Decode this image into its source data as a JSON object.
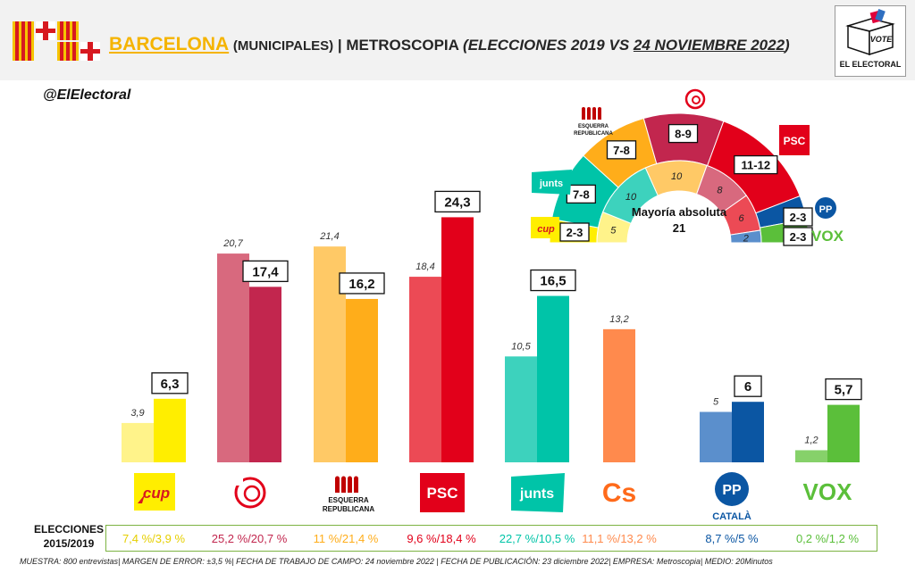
{
  "header": {
    "city": "BARCELONA",
    "election_type": "(MUNICIPALES)",
    "separator": "|",
    "pollster": "METROSCOPIA",
    "comparison_open": "(",
    "comparison": "ELECCIONES 2019 VS",
    "date": "24 NOVIEMBRE 2022",
    "comparison_close": ")"
  },
  "logo": {
    "vote": "VOTE",
    "text": "EL ELECTORAL"
  },
  "handle": "@ElElectoral",
  "colors": {
    "CUP": [
      "#fff38a",
      "#ffee00"
    ],
    "BComu": [
      "#d8697e",
      "#c2264e"
    ],
    "ERC": [
      "#ffc966",
      "#ffad1a"
    ],
    "PSC": [
      "#ec4a55",
      "#e2001a"
    ],
    "Junts": [
      "#3dd2bd",
      "#00c4a8"
    ],
    "Cs": [
      "#ff8a4d",
      "#ff8a4d"
    ],
    "PP": [
      "#5b8fcc",
      "#0b56a3"
    ],
    "Vox": [
      "#86d16a",
      "#5bbf3a"
    ]
  },
  "chart_data": {
    "type": "bar",
    "categories": [
      "CUP",
      "BComu",
      "ERC",
      "PSC",
      "Junts",
      "Cs",
      "PP",
      "Vox"
    ],
    "category_labels": [
      "cup",
      "",
      "ESQUERRA REPUBLICANA",
      "PSC",
      "junts",
      "Cs",
      "PP",
      "VOX"
    ],
    "category_sublabels": [
      "",
      "",
      "",
      "",
      "",
      "",
      "CATALÀ",
      ""
    ],
    "series": [
      {
        "name": "",
        "values": [
          3.9,
          20.7,
          21.4,
          18.4,
          10.5,
          13.2,
          5,
          1.2
        ],
        "labels": [
          "3,9",
          "20,7",
          "21,4",
          "18,4",
          "10,5",
          "13,2",
          "5",
          "1,2"
        ]
      },
      {
        "name": "",
        "values": [
          6.3,
          17.4,
          16.2,
          24.3,
          16.5,
          null,
          6,
          5.7
        ],
        "labels": [
          "6,3",
          "17,4",
          "16,2",
          "24,3",
          "16,5",
          "",
          "6",
          "5,7"
        ]
      }
    ],
    "ylim": [
      0,
      26
    ]
  },
  "hemicycle": {
    "type": "pie",
    "label": "Mayoría absoluta",
    "majority": "21",
    "order": [
      "CUP",
      "Junts",
      "ERC",
      "BComu",
      "PSC",
      "PP",
      "Vox"
    ],
    "outer_labels": [
      "2-3",
      "7-8",
      "7-8",
      "8-9",
      "11-12",
      "2-3",
      "2-3"
    ],
    "outer_values": [
      2.5,
      7.5,
      7.5,
      8.5,
      11.5,
      2.5,
      2.5
    ],
    "inner_labels": [
      "5",
      "10",
      "10",
      "8",
      "6",
      "2",
      ""
    ],
    "inner_values": [
      5,
      10,
      10,
      8,
      6,
      2,
      0
    ],
    "logos": {
      "ERC": "ESQUERRA REPUBLICANA",
      "PSC": "PSC",
      "Junts": "junts",
      "CUP": "cup",
      "PP": "PP",
      "Vox": "VOX"
    }
  },
  "previous": {
    "title": "ELECCIONES 2015/2019",
    "values": [
      "7,4 %/3,9 %",
      "25,2 %/20,7 %",
      "11 %/21,4 %",
      "9,6 %/18,4 %",
      "22,7 %/10,5 %",
      "11,1 %/13,2 %",
      "8,7 %/5 %",
      "0,2 %/1,2 %"
    ]
  },
  "footnote": "MUESTRA: 800 entrevistas| MARGEN DE ERROR: ±3,5 %| FECHA DE TRABAJO DE CAMPO: 24 noviembre 2022 | FECHA DE PUBLICACIÓN: 23 diciembre 2022| EMPRESA: Metroscopia| MEDIO: 20Minutos"
}
